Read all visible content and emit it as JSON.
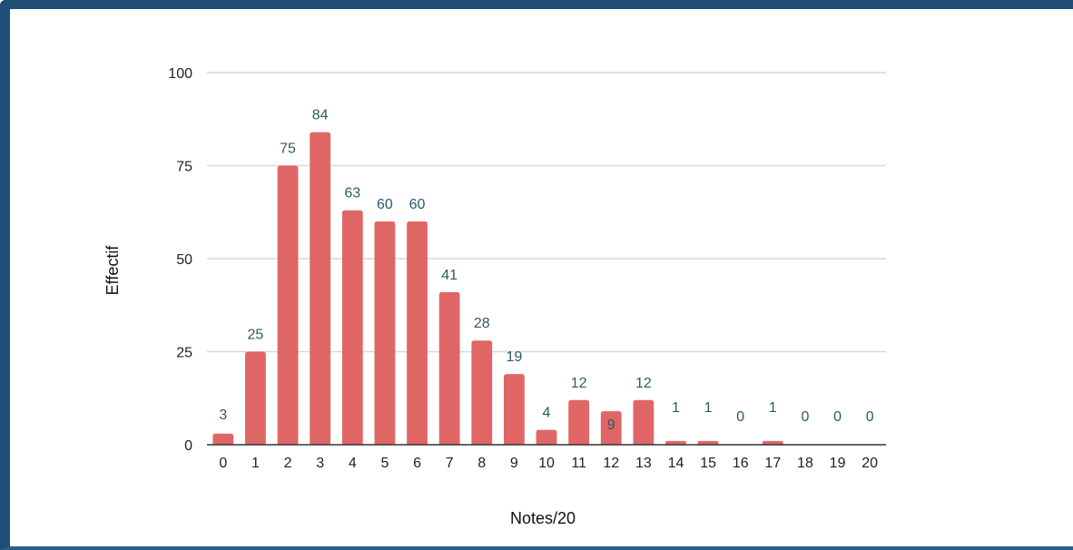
{
  "chart_data": {
    "type": "bar",
    "title": "",
    "xlabel": "Notes/20",
    "ylabel": "Effectif",
    "categories": [
      "0",
      "1",
      "2",
      "3",
      "4",
      "5",
      "6",
      "7",
      "8",
      "9",
      "10",
      "11",
      "12",
      "13",
      "14",
      "15",
      "16",
      "17",
      "18",
      "19",
      "20"
    ],
    "values": [
      3,
      25,
      75,
      84,
      63,
      60,
      60,
      41,
      28,
      19,
      4,
      12,
      9,
      12,
      1,
      1,
      0,
      1,
      0,
      0,
      0
    ],
    "ylim": [
      0,
      100
    ],
    "yticks": [
      0,
      25,
      50,
      75,
      100
    ],
    "grid": true,
    "legend": "none",
    "colors": {
      "bar": "#e06666",
      "value_label": "#2e5a67",
      "gridline": "#d9d9d9",
      "axis": "#333333",
      "frame": "#1f4e79"
    }
  }
}
